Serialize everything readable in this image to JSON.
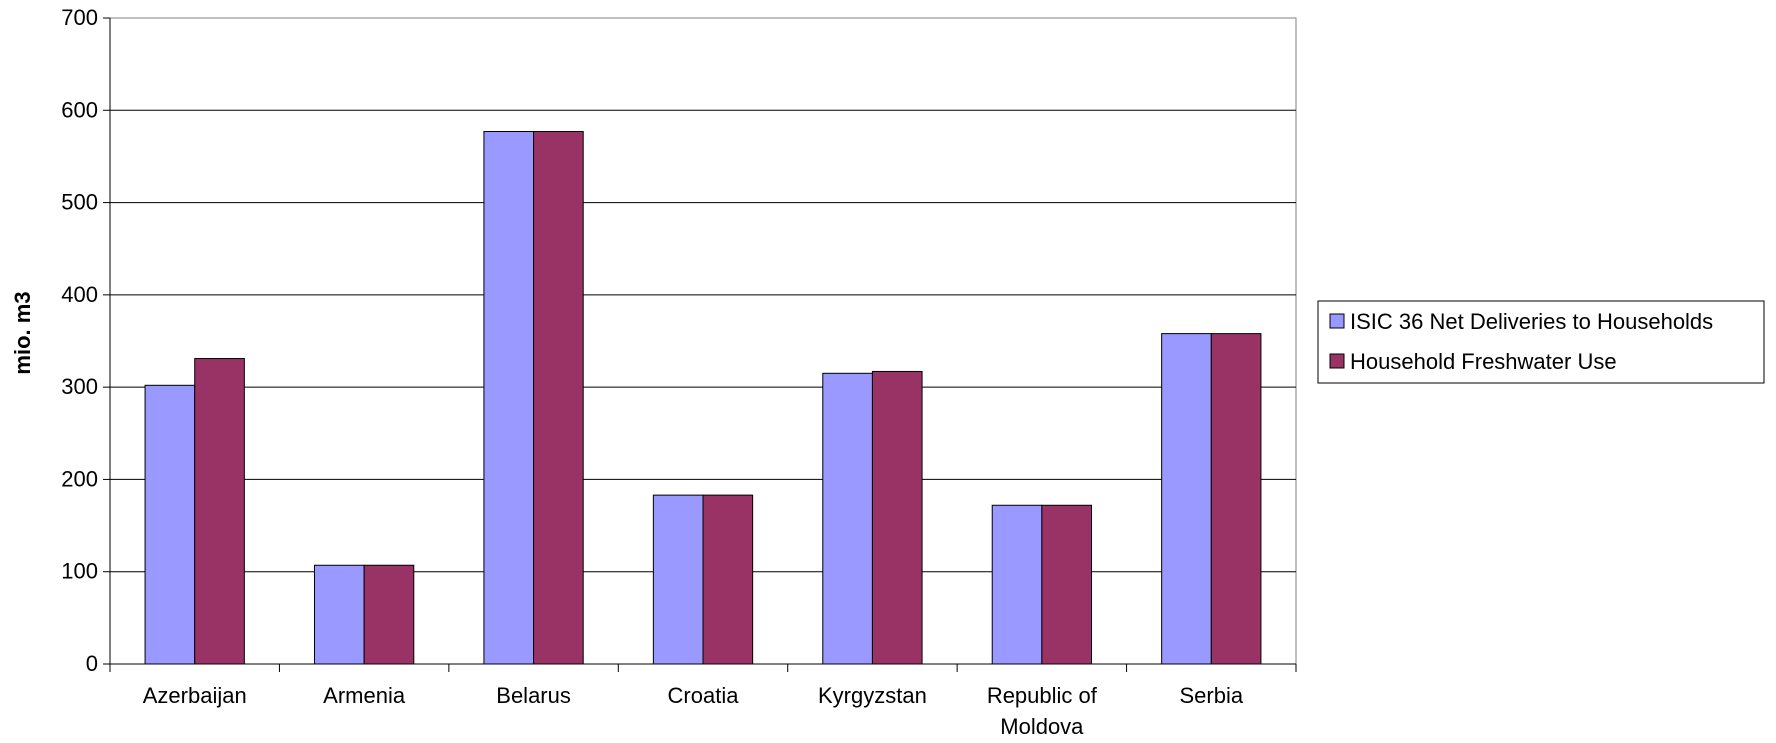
{
  "chart_data": {
    "type": "bar",
    "ylabel": "mio. m3",
    "ylim": [
      0,
      700
    ],
    "yticks": [
      0,
      100,
      200,
      300,
      400,
      500,
      600,
      700
    ],
    "grid": true,
    "legend_position": "right",
    "categories": [
      [
        "Azerbaijan"
      ],
      [
        "Armenia"
      ],
      [
        "Belarus"
      ],
      [
        "Croatia"
      ],
      [
        "Kyrgyzstan"
      ],
      [
        "Republic of",
        "Moldova"
      ],
      [
        "Serbia"
      ]
    ],
    "series": [
      {
        "name": "ISIC 36 Net Deliveries to Households",
        "color": "#9999ff",
        "values": [
          302,
          107,
          577,
          183,
          315,
          172,
          358
        ]
      },
      {
        "name": "Household Freshwater Use",
        "color": "#993366",
        "values": [
          331,
          107,
          577,
          183,
          317,
          172,
          358
        ]
      }
    ]
  }
}
